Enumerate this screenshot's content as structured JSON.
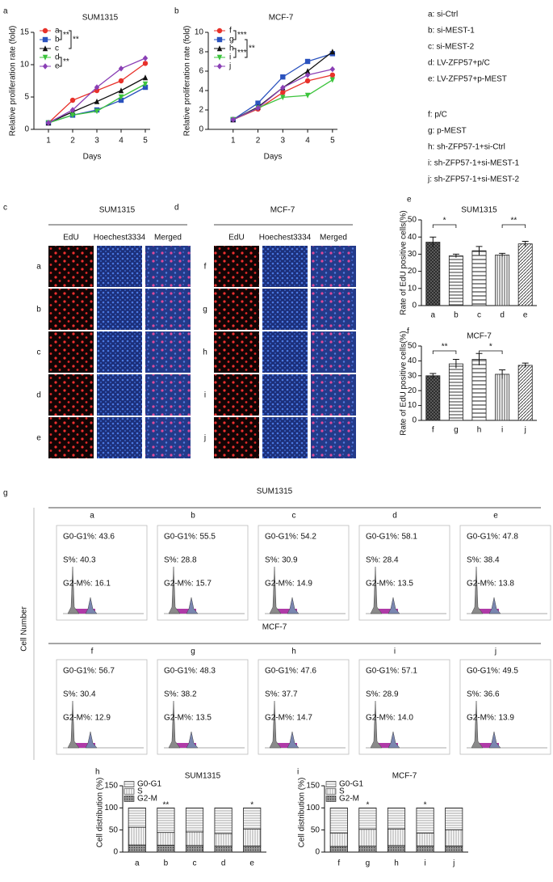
{
  "chart_data": [
    {
      "type": "line",
      "panel": "a",
      "title": "SUM1315",
      "x_label": "Days",
      "y_label": "Relative proliferation rate (fold)",
      "x": [
        1,
        2,
        3,
        4,
        5
      ],
      "xlim": [
        0.4,
        5.2
      ],
      "xticks": [
        1,
        2,
        3,
        4,
        5
      ],
      "ylim": [
        0,
        15
      ],
      "yticks": [
        0,
        5,
        10,
        15
      ],
      "series": [
        {
          "name": "a",
          "color": "#e8312a",
          "marker": "circle",
          "values": [
            1,
            4.5,
            6,
            7.5,
            10.2
          ]
        },
        {
          "name": "b",
          "color": "#2a52be",
          "marker": "square",
          "values": [
            1,
            2.2,
            3,
            4.5,
            6.5
          ]
        },
        {
          "name": "c",
          "color": "#111111",
          "marker": "triangle",
          "values": [
            1,
            2.7,
            4.3,
            6,
            8
          ]
        },
        {
          "name": "d",
          "color": "#3cc43c",
          "marker": "triangle-down",
          "values": [
            1,
            2.2,
            2.8,
            5,
            7
          ]
        },
        {
          "name": "e",
          "color": "#8a3fb5",
          "marker": "diamond",
          "values": [
            1,
            3,
            6.5,
            9.4,
            11
          ]
        }
      ],
      "annotations": [
        "**",
        "**",
        "**"
      ]
    },
    {
      "type": "line",
      "panel": "b",
      "title": "MCF-7",
      "x_label": "Days",
      "y_label": "Relative proliferation rate (fold)",
      "x": [
        1,
        2,
        3,
        4,
        5
      ],
      "xlim": [
        0,
        5.2
      ],
      "xticks": [
        1,
        2,
        3,
        4,
        5
      ],
      "ylim": [
        0,
        10
      ],
      "yticks": [
        0,
        2,
        4,
        6,
        8,
        10
      ],
      "series": [
        {
          "name": "f",
          "color": "#e8312a",
          "marker": "circle",
          "values": [
            1,
            2.1,
            3.8,
            5,
            5.6
          ]
        },
        {
          "name": "g",
          "color": "#2a52be",
          "marker": "square",
          "values": [
            1,
            2.7,
            5.4,
            7,
            7.8
          ]
        },
        {
          "name": "h",
          "color": "#111111",
          "marker": "triangle",
          "values": [
            1,
            2.3,
            4.3,
            6,
            8
          ]
        },
        {
          "name": "i",
          "color": "#3cc43c",
          "marker": "triangle-down",
          "values": [
            1,
            2.2,
            3.3,
            3.5,
            5.1
          ]
        },
        {
          "name": "j",
          "color": "#8a3fb5",
          "marker": "diamond",
          "values": [
            1,
            2.2,
            4.3,
            5.6,
            6.2
          ]
        }
      ],
      "annotations": [
        "***",
        "***",
        "**"
      ]
    },
    {
      "type": "bar",
      "panel": "e",
      "title": "SUM1315",
      "y_label": "Rate of EdU positive cells(%)",
      "categories": [
        "a",
        "b",
        "c",
        "d",
        "e"
      ],
      "values": [
        37,
        29,
        32,
        29.5,
        36
      ],
      "errors": [
        3,
        1,
        2.5,
        1,
        1.5
      ],
      "ylim": [
        0,
        50
      ],
      "yticks": [
        0,
        10,
        20,
        30,
        40,
        50
      ],
      "annotations": [
        "*",
        "**"
      ]
    },
    {
      "type": "bar",
      "panel": "f",
      "title": "MCF-7",
      "y_label": "Rate of EdU positive cells(%)",
      "categories": [
        "f",
        "g",
        "h",
        "i",
        "j"
      ],
      "values": [
        30,
        38,
        41,
        31,
        37
      ],
      "errors": [
        1.5,
        3,
        4,
        3,
        1.5
      ],
      "ylim": [
        0,
        50
      ],
      "yticks": [
        0,
        10,
        20,
        30,
        40,
        50
      ],
      "annotations": [
        "**",
        "*"
      ]
    },
    {
      "type": "stacked_bar",
      "panel": "h",
      "title": "SUM1315",
      "y_label": "Cell distribution (%)",
      "categories": [
        "a",
        "b",
        "c",
        "d",
        "e"
      ],
      "ylim": [
        0,
        150
      ],
      "yticks": [
        0,
        50,
        100,
        150
      ],
      "series": [
        {
          "name": "G0-G1",
          "values": [
            43.6,
            55.5,
            54.2,
            58.1,
            47.8
          ]
        },
        {
          "name": "S",
          "values": [
            40.3,
            28.8,
            30.9,
            28.4,
            38.4
          ]
        },
        {
          "name": "G2-M",
          "values": [
            16.1,
            15.7,
            14.9,
            13.5,
            13.8
          ]
        }
      ],
      "annotations": [
        "**",
        "*"
      ]
    },
    {
      "type": "stacked_bar",
      "panel": "i",
      "title": "MCF-7",
      "y_label": "Cell distribution (%)",
      "categories": [
        "f",
        "g",
        "h",
        "i",
        "j"
      ],
      "ylim": [
        0,
        150
      ],
      "yticks": [
        0,
        50,
        100,
        150
      ],
      "series": [
        {
          "name": "G0-G1",
          "values": [
            56.7,
            48.3,
            47.6,
            57.1,
            49.5
          ]
        },
        {
          "name": "S",
          "values": [
            30.4,
            38.2,
            37.7,
            28.9,
            36.6
          ]
        },
        {
          "name": "G2-M",
          "values": [
            12.9,
            13.5,
            14.7,
            14.0,
            13.9
          ]
        }
      ],
      "annotations": [
        "*",
        "*"
      ]
    }
  ],
  "key": [
    "a: si-Ctrl",
    "b: si-MEST-1",
    "c: si-MEST-2",
    "d: LV-ZFP57+p/C",
    "e: LV-ZFP57+p-MEST",
    "f:  p/C",
    "g: p-MEST",
    "h: sh-ZFP57-1+si-Ctrl",
    "i: sh-ZFP57-1+si-MEST-1",
    "j: sh-ZFP57-1+si-MEST-2"
  ],
  "microscopy": [
    {
      "panel": "c",
      "title": "SUM1315",
      "columns": [
        "EdU",
        "Hoechest3334",
        "Merged"
      ],
      "rows": [
        "a",
        "b",
        "c",
        "d",
        "e"
      ]
    },
    {
      "panel": "d",
      "title": "MCF-7",
      "columns": [
        "EdU",
        "Hoechest3334",
        "Merged"
      ],
      "rows": [
        "f",
        "g",
        "h",
        "i",
        "j"
      ]
    }
  ],
  "flow": {
    "panel": "g",
    "y_label": "Cell Number",
    "groups": [
      {
        "title": "SUM1315",
        "samples": [
          {
            "label": "a",
            "lines": [
              "G0-G1%: 43.6",
              "S%: 40.3",
              "G2-M%: 16.1"
            ]
          },
          {
            "label": "b",
            "lines": [
              "G0-G1%: 55.5",
              "S%: 28.8",
              "G2-M%: 15.7"
            ]
          },
          {
            "label": "c",
            "lines": [
              "G0-G1%: 54.2",
              "S%: 30.9",
              "G2-M%: 14.9"
            ]
          },
          {
            "label": "d",
            "lines": [
              "G0-G1%: 58.1",
              "S%: 28.4",
              "G2-M%: 13.5"
            ]
          },
          {
            "label": "e",
            "lines": [
              "G0-G1%: 47.8",
              "S%: 38.4",
              "G2-M%: 13.8"
            ]
          }
        ]
      },
      {
        "title": "MCF-7",
        "samples": [
          {
            "label": "f",
            "lines": [
              "G0-G1%: 56.7",
              "S%: 30.4",
              "G2-M%: 12.9"
            ]
          },
          {
            "label": "g",
            "lines": [
              "G0-G1%: 48.3",
              "S%: 38.2",
              "G2-M%: 13.5"
            ]
          },
          {
            "label": "h",
            "lines": [
              "G0-G1%: 47.6",
              "S%: 37.7",
              "G2-M%: 14.7"
            ]
          },
          {
            "label": "i",
            "lines": [
              "G0-G1%: 57.1",
              "S%: 28.9",
              "G2-M%: 14.0"
            ]
          },
          {
            "label": "j",
            "lines": [
              "G0-G1%: 49.5",
              "S%: 36.6",
              "G2-M%: 13.9"
            ]
          }
        ]
      }
    ]
  }
}
